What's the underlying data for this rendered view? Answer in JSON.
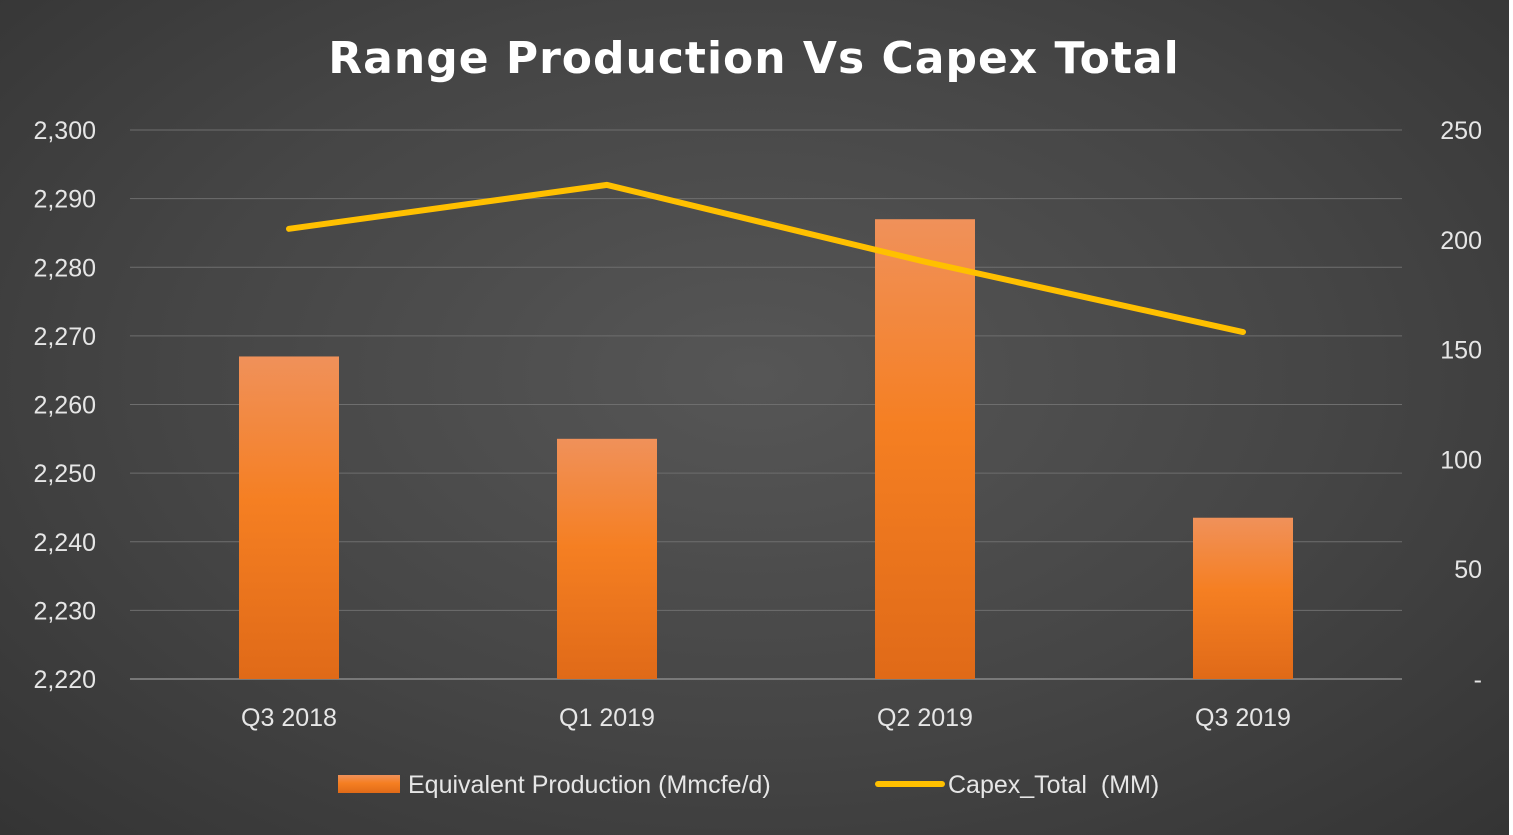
{
  "chart_data": {
    "type": "bar",
    "title": "Range Production Vs Capex Total",
    "categories": [
      "Q3 2018",
      "Q1 2019",
      "Q2 2019",
      "Q3 2019"
    ],
    "series": [
      {
        "name": "Equivalent Production (Mmcfe/d)",
        "type": "bar",
        "axis": "left",
        "values": [
          2267,
          2255,
          2287,
          2243.5
        ],
        "color": "#f07f2a"
      },
      {
        "name": "Capex_Total  (MM)",
        "type": "line",
        "axis": "right",
        "values": [
          205,
          225,
          190,
          158
        ],
        "color": "#ffc000"
      }
    ],
    "y_left": {
      "ylim": [
        2220,
        2300
      ],
      "ticks": [
        2220,
        2230,
        2240,
        2250,
        2260,
        2270,
        2280,
        2290,
        2300
      ],
      "tick_labels": [
        "2,220",
        "2,230",
        "2,240",
        "2,250",
        "2,260",
        "2,270",
        "2,280",
        "2,290",
        "2,300"
      ]
    },
    "y_right": {
      "ylim": [
        0,
        250
      ],
      "ticks": [
        0,
        50,
        100,
        150,
        200,
        250
      ],
      "tick_labels": [
        "-",
        "50",
        "100",
        "150",
        "200",
        "250"
      ]
    },
    "grid": true,
    "legend_position": "bottom"
  },
  "colors": {
    "background": "#454545",
    "bar": "#f07f2a",
    "line": "#ffc000",
    "grid": "#6e6e6e",
    "text": "#e6e6e6"
  }
}
